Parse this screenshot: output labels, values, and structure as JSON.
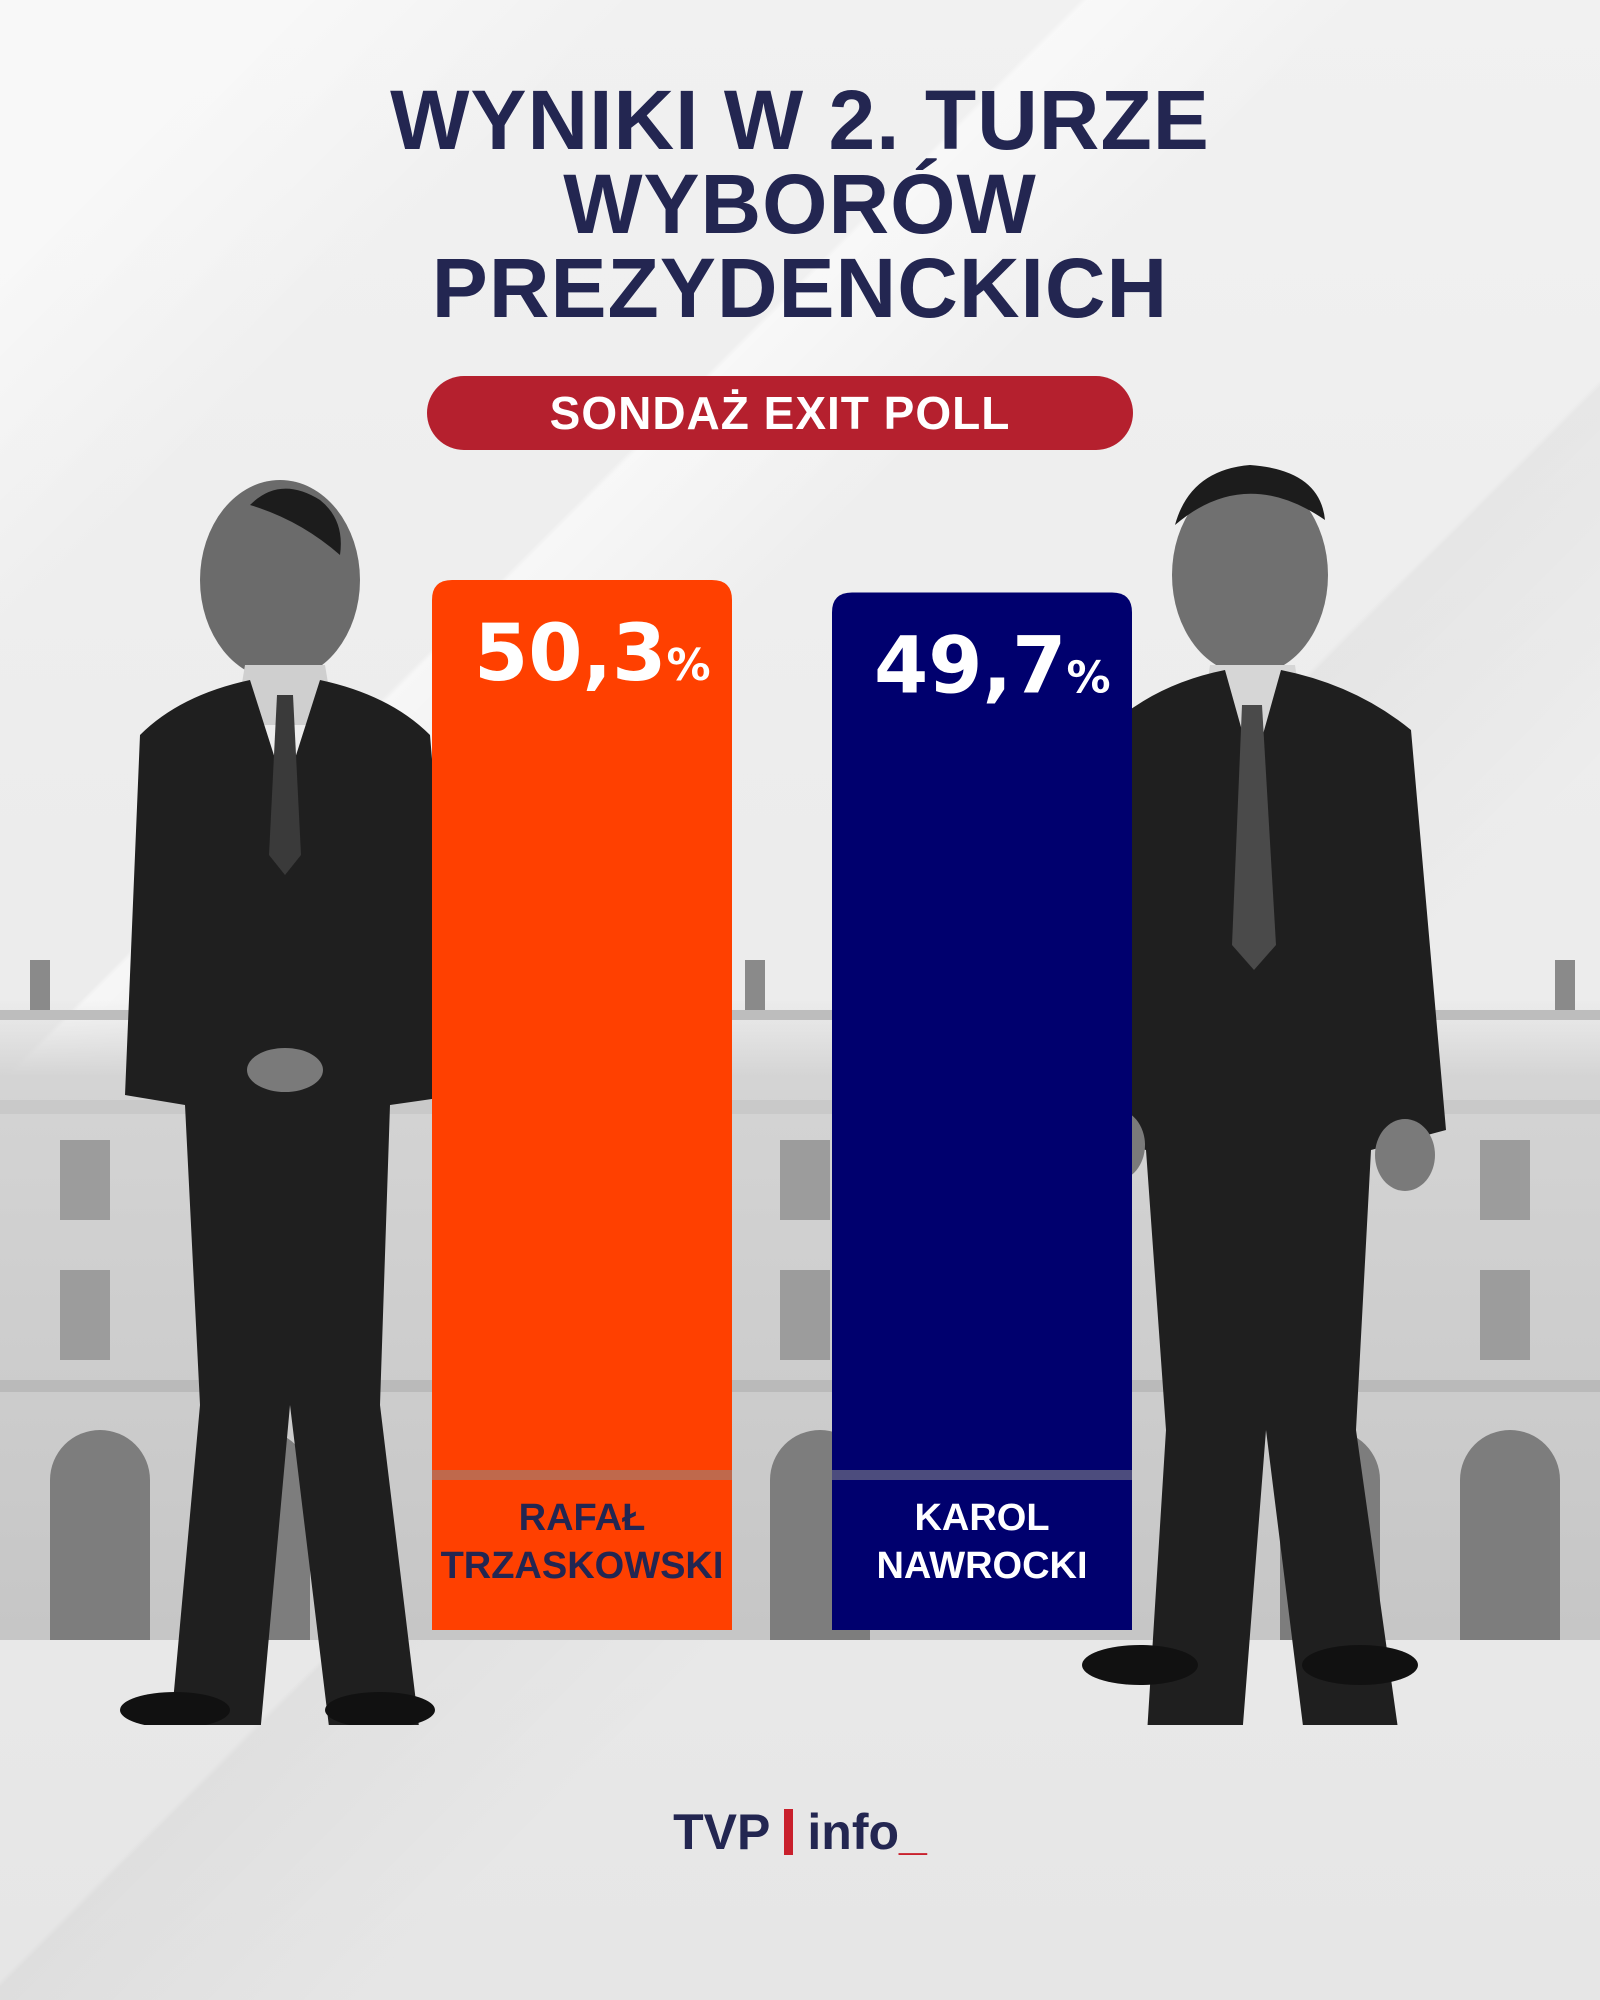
{
  "header": {
    "title_lines": [
      "WYNIKI W 2. TURZE",
      "WYBORÓW",
      "PREZYDENCKICH"
    ],
    "subtitle": "SONDAŻ EXIT POLL"
  },
  "chart_data": {
    "type": "bar",
    "title": "WYNIKI W 2. TURZE WYBORÓW PREZYDENCKICH",
    "subtitle": "SONDAŻ EXIT POLL",
    "categories": [
      "RAFAŁ TRZASKOWSKI",
      "KAROL NAWROCKI"
    ],
    "values": [
      50.3,
      49.7
    ],
    "value_labels": [
      "50,3",
      "49,7"
    ],
    "unit": "%",
    "name_lines": [
      [
        "RAFAŁ",
        "TRZASKOWSKI"
      ],
      [
        "KAROL",
        "NAWROCKI"
      ]
    ],
    "colors": [
      "#ff4000",
      "#00006e"
    ],
    "ylim": [
      0,
      60
    ],
    "grid": false,
    "legend": "none"
  },
  "logo": {
    "brand": "TVP",
    "product": "info",
    "cursor": "_",
    "accent": "#c9202c"
  },
  "colors": {
    "title": "#232651",
    "pill": "#b5202e",
    "background": "#ececec"
  },
  "images": {
    "left_person": "man-in-dark-suit-photo",
    "right_person": "man-in-dark-suit-photo",
    "background": "palace-building-photo"
  }
}
